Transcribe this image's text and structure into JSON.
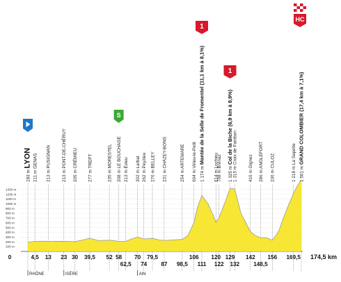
{
  "chart_data": {
    "type": "area",
    "title": "",
    "xlabel": "",
    "ylabel": "",
    "total_distance": 174.5,
    "total_label": "174,5 km",
    "start_label": "0",
    "ylim": [
      0,
      1400
    ],
    "y_unit": "m",
    "y_ticks": [
      {
        "value": 100,
        "label": "100 m"
      },
      {
        "value": 200,
        "label": "200 m"
      },
      {
        "value": 300,
        "label": "300 m"
      },
      {
        "value": 400,
        "label": "400 m"
      },
      {
        "value": 500,
        "label": "500 m"
      },
      {
        "value": 600,
        "label": "600 m"
      },
      {
        "value": 700,
        "label": "700 m"
      },
      {
        "value": 800,
        "label": "800 m"
      },
      {
        "value": 900,
        "label": "900 m"
      },
      {
        "value": 1000,
        "label": "1000 m"
      },
      {
        "value": 1100,
        "label": "1100 m"
      },
      {
        "value": 1200,
        "label": "1200 m"
      },
      {
        "value": 1300,
        "label": "1300 m"
      }
    ],
    "profile": {
      "x": [
        0,
        4.5,
        10,
        13,
        18,
        23,
        27,
        30,
        35,
        39.5,
        45,
        52,
        55,
        58,
        62.5,
        66,
        70,
        74,
        79.5,
        84,
        87,
        92,
        98.5,
        102,
        106,
        108,
        111,
        115,
        118,
        120,
        122,
        126,
        129,
        132,
        136,
        142,
        145,
        148.5,
        152,
        156,
        160,
        163,
        166,
        169.5,
        172,
        174.5
      ],
      "y": [
        193,
        211,
        214,
        213,
        212,
        213,
        210,
        205,
        240,
        277,
        230,
        235,
        230,
        208,
        213,
        260,
        302,
        262,
        276,
        240,
        231,
        240,
        254,
        330,
        604,
        900,
        1174,
        1000,
        780,
        614,
        708,
        1050,
        1325,
        1315,
        800,
        416,
        340,
        286,
        290,
        236,
        420,
        700,
        950,
        1218,
        1380,
        1501
      ]
    },
    "waypoints": [
      {
        "km": 0,
        "altitude": "193 m",
        "name": "LYON",
        "bold": true
      },
      {
        "km": 4.5,
        "altitude": "211 m",
        "name": "GENAS"
      },
      {
        "km": 13,
        "altitude": "213 m",
        "name": "PUSIGNAN"
      },
      {
        "km": 23,
        "altitude": "213 m",
        "name": "PONT-DE-CHÉRUY"
      },
      {
        "km": 30,
        "altitude": "205 m",
        "name": "CRÉMIEU"
      },
      {
        "km": 39.5,
        "altitude": "277 m",
        "name": "TREPT"
      },
      {
        "km": 52,
        "altitude": "235 m",
        "name": "MORESTEL"
      },
      {
        "km": 58,
        "altitude": "208 m",
        "name": "LE BOUCHAGE"
      },
      {
        "km": 62.5,
        "altitude": "213 m",
        "name": "Évieu"
      },
      {
        "km": 70,
        "altitude": "302 m",
        "name": "Larbat"
      },
      {
        "km": 74,
        "altitude": "262 m",
        "name": "Peyzieu"
      },
      {
        "km": 79.5,
        "altitude": "276 m",
        "name": "BELLEY"
      },
      {
        "km": 87,
        "altitude": "231 m",
        "name": "CHAZEY-BONS"
      },
      {
        "km": 98.5,
        "altitude": "254 m",
        "name": "ARTEMARE"
      },
      {
        "km": 106,
        "altitude": "604 m",
        "name": "Virieu-le-Petit"
      },
      {
        "km": 111,
        "altitude": "1 174 m",
        "name": "Montée de la Selle de Fromentel (11,1 km à 8,1%)",
        "bold": true
      },
      {
        "km": 120,
        "altitude": "614 m",
        "name": "Lochieu"
      },
      {
        "km": 122,
        "altitude": "708 m",
        "name": "Brénaz"
      },
      {
        "km": 129,
        "altitude": "1 325 m",
        "name": "Col de la Biche (6,9 km à 8,9%)",
        "bold": true
      },
      {
        "km": 132,
        "altitude": "1 315 m",
        "name": "Croix de Famban"
      },
      {
        "km": 142,
        "altitude": "416 m",
        "name": "Gignez"
      },
      {
        "km": 148.5,
        "altitude": "286 m",
        "name": "ANGLEFORT"
      },
      {
        "km": 156,
        "altitude": "236 m",
        "name": "CULOZ"
      },
      {
        "km": 169.5,
        "altitude": "1 218 m",
        "name": "La Sapette"
      },
      {
        "km": 174.5,
        "altitude": "1 501 m",
        "name": "GRAND COLOMBIER (17,4 km à 7,1%)",
        "bold": true
      }
    ],
    "km_labels": [
      {
        "km": 4.5,
        "label": "4,5",
        "row": 0
      },
      {
        "km": 13,
        "label": "13",
        "row": 0
      },
      {
        "km": 23,
        "label": "23",
        "row": 0
      },
      {
        "km": 30,
        "label": "30",
        "row": 0
      },
      {
        "km": 39.5,
        "label": "39,5",
        "row": 0
      },
      {
        "km": 52,
        "label": "52",
        "row": 0
      },
      {
        "km": 58,
        "label": "58",
        "row": 0
      },
      {
        "km": 62.5,
        "label": "62,5",
        "row": 1
      },
      {
        "km": 70,
        "label": "70",
        "row": 0
      },
      {
        "km": 74,
        "label": "74",
        "row": 1
      },
      {
        "km": 79.5,
        "label": "79,5",
        "row": 0
      },
      {
        "km": 87,
        "label": "87",
        "row": 1
      },
      {
        "km": 98.5,
        "label": "98,5",
        "row": 1
      },
      {
        "km": 106,
        "label": "106",
        "row": 0
      },
      {
        "km": 111,
        "label": "111",
        "row": 1
      },
      {
        "km": 120,
        "label": "120",
        "row": 0
      },
      {
        "km": 122,
        "label": "122",
        "row": 1
      },
      {
        "km": 129,
        "label": "129",
        "row": 0
      },
      {
        "km": 132,
        "label": "132",
        "row": 1
      },
      {
        "km": 142,
        "label": "142",
        "row": 0
      },
      {
        "km": 148.5,
        "label": "148,5",
        "row": 1
      },
      {
        "km": 156,
        "label": "156",
        "row": 0
      },
      {
        "km": 169.5,
        "label": "169,5",
        "row": 0
      }
    ],
    "regions": [
      {
        "km": 0,
        "label": "RHÔNE"
      },
      {
        "km": 23,
        "label": "ISÈRE"
      },
      {
        "km": 70,
        "label": "AIN"
      }
    ],
    "climbs": [
      {
        "km": 111,
        "category": "1"
      },
      {
        "km": 129,
        "category": "1"
      },
      {
        "km": 174.5,
        "category": "HC"
      }
    ],
    "sprints": [
      {
        "km": 58,
        "label": "S"
      }
    ],
    "colors": {
      "fill": "#f7e633",
      "outline": "#9a9a9a",
      "climb": "#d7192b",
      "sprint": "#3aa935",
      "start": "#1e77c7",
      "guide": "#555555"
    }
  }
}
